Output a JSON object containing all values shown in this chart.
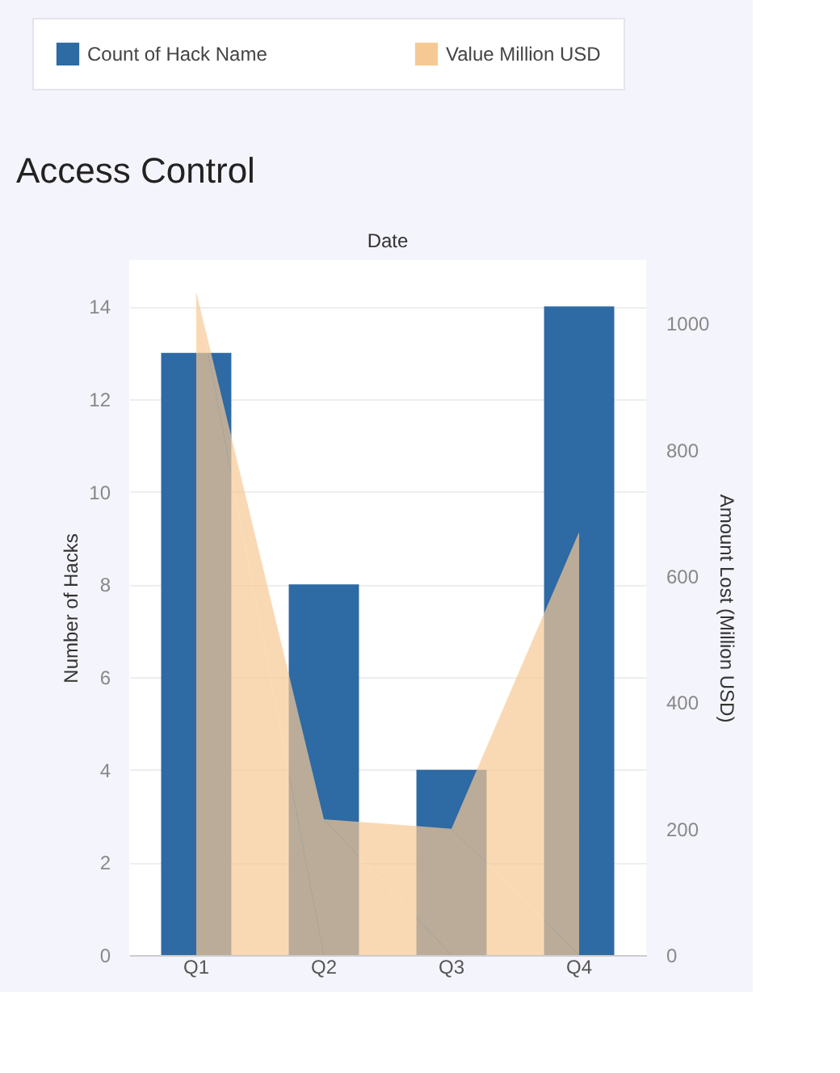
{
  "chart_data": {
    "type": "bar",
    "title": "Access Control",
    "xlabel": "Date",
    "ylabel": "Number of Hacks",
    "y2label": "Amount Lost (Million USD)",
    "categories": [
      "Q1",
      "Q2",
      "Q3",
      "Q4"
    ],
    "series": [
      {
        "name": "Count of Hack Name",
        "color": "#2e6aa3",
        "values": [
          13,
          8,
          4,
          14
        ]
      },
      {
        "name": "Value Million USD",
        "type": "area",
        "axis": "y2",
        "color": "#f6c994",
        "values": [
          1050,
          215,
          200,
          670
        ]
      }
    ],
    "ylim": [
      0,
      15
    ],
    "yticks": [
      0,
      2,
      4,
      6,
      8,
      10,
      12,
      14
    ],
    "y2lim": [
      0,
      1100
    ],
    "y2ticks": [
      0,
      200,
      400,
      600,
      800,
      1000
    ],
    "grid": "y",
    "legend": "top"
  }
}
